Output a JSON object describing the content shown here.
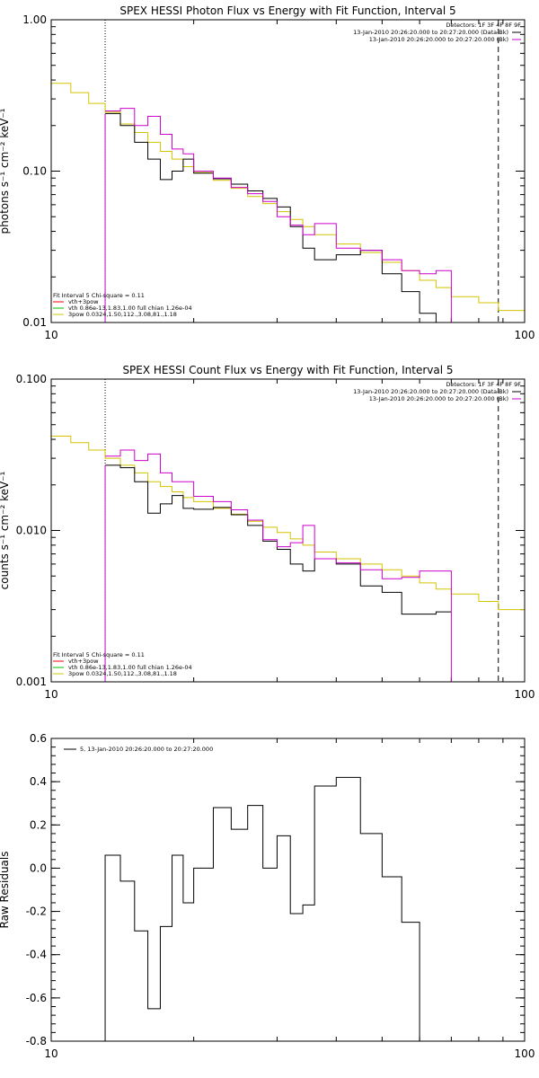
{
  "colors": {
    "black": "#000000",
    "magenta": "#cc00cc",
    "yellow": "#d4c400",
    "red": "#ff0000",
    "green": "#00c000"
  },
  "chart_data": [
    {
      "type": "line",
      "title": "SPEX HESSI Photon Flux vs Energy with Fit Function, Interval 5",
      "xlabel": "",
      "ylabel": "photons s⁻¹ cm⁻² keV⁻¹",
      "xscale": "log",
      "yscale": "log",
      "xlim": [
        10,
        100
      ],
      "ylim": [
        0.01,
        1.0
      ],
      "x_ticks": [
        10,
        100
      ],
      "y_ticks": [
        0.01,
        0.1,
        1.0
      ],
      "x_tick_labels": [
        "10",
        "100"
      ],
      "y_tick_labels": [
        "0.01",
        "0.10",
        "1.00"
      ],
      "vlines": [
        {
          "x": 13,
          "style": "dotted"
        },
        {
          "x": 88,
          "style": "dashed"
        }
      ],
      "legend_top_right": {
        "header": "Detectors: 1F 3F 4F 8F 9F",
        "entries": [
          {
            "text": "13-Jan-2010 20:26:20.000 to 20:27:20.000 (Data-Bk)",
            "color": "#000000"
          },
          {
            "text": "13-Jan-2010 20:26:20.000 to 20:27:20.000 (Bk)",
            "color": "#cc00cc"
          }
        ]
      },
      "legend_bottom_left": {
        "header": "Fit Interval 5   Chi-square = 0.11",
        "entries": [
          {
            "text": "vth+3pow",
            "color": "#ff0000"
          },
          {
            "text": "vth 0.86e-13,1.83,1.00  full chian 1.26e-04",
            "color": "#00c000"
          },
          {
            "text": "3pow 0.0324,1.50,112.,3.08,81.,1.18",
            "color": "#d4c400"
          }
        ]
      },
      "bin_edges": [
        10,
        11,
        12,
        13,
        14,
        15,
        16,
        17,
        18,
        19,
        20,
        22,
        24,
        26,
        28,
        30,
        32,
        34,
        36,
        40,
        45,
        50,
        55,
        60,
        65,
        70,
        80,
        88,
        100
      ],
      "series": [
        {
          "color": "#d4c400",
          "values": [
            0.38,
            0.33,
            0.28,
            0.245,
            0.205,
            0.18,
            0.155,
            0.135,
            0.12,
            0.107,
            0.098,
            0.087,
            0.077,
            0.068,
            0.061,
            0.054,
            0.048,
            0.043,
            0.038,
            0.033,
            0.029,
            0.025,
            0.022,
            0.019,
            0.017,
            0.0148,
            0.0135,
            0.012
          ]
        },
        {
          "color": "#000000",
          "values": [
            null,
            null,
            null,
            0.24,
            0.2,
            0.155,
            0.12,
            0.088,
            0.1,
            0.12,
            0.097,
            0.089,
            0.082,
            0.074,
            0.066,
            0.058,
            0.043,
            0.031,
            0.026,
            0.028,
            0.03,
            0.021,
            0.016,
            0.0115,
            0.0095,
            null,
            null,
            null
          ]
        },
        {
          "color": "#cc00cc",
          "values": [
            null,
            null,
            null,
            0.25,
            0.26,
            0.2,
            0.23,
            0.175,
            0.14,
            0.13,
            0.1,
            0.09,
            0.078,
            0.071,
            0.063,
            0.05,
            0.044,
            0.038,
            0.045,
            0.031,
            0.03,
            0.026,
            0.022,
            0.021,
            0.022,
            null,
            null,
            null
          ]
        }
      ]
    },
    {
      "type": "line",
      "title": "SPEX HESSI Count Flux vs Energy with Fit Function, Interval 5",
      "xlabel": "",
      "ylabel": "counts s⁻¹ cm⁻² keV⁻¹",
      "xscale": "log",
      "yscale": "log",
      "xlim": [
        10,
        100
      ],
      "ylim": [
        0.001,
        0.1
      ],
      "x_ticks": [
        10,
        100
      ],
      "y_ticks": [
        0.001,
        0.01,
        0.1
      ],
      "x_tick_labels": [
        "10",
        "100"
      ],
      "y_tick_labels": [
        "0.001",
        "0.010",
        "0.100"
      ],
      "vlines": [
        {
          "x": 13,
          "style": "dotted"
        },
        {
          "x": 88,
          "style": "dashed"
        }
      ],
      "legend_top_right": {
        "header": "Detectors: 1F 3F 4F 8F 9F",
        "entries": [
          {
            "text": "13-Jan-2010 20:26:20.000 to 20:27:20.000 (Data-Bk)",
            "color": "#000000"
          },
          {
            "text": "13-Jan-2010 20:26:20.000 to 20:27:20.000 (Bk)",
            "color": "#cc00cc"
          }
        ]
      },
      "legend_bottom_left": {
        "header": "Fit Interval 5   Chi-square = 0.11",
        "entries": [
          {
            "text": "vth+3pow",
            "color": "#ff0000"
          },
          {
            "text": "vth 0.86e-13,1.83,1.00  full chian 1.26e-04",
            "color": "#00c000"
          },
          {
            "text": "3pow 0.0324,1.50,112.,3.08,81.,1.18",
            "color": "#d4c400"
          }
        ]
      },
      "bin_edges": [
        10,
        11,
        12,
        13,
        14,
        15,
        16,
        17,
        18,
        19,
        20,
        22,
        24,
        26,
        28,
        30,
        32,
        34,
        36,
        40,
        45,
        50,
        55,
        60,
        65,
        70,
        80,
        88,
        100
      ],
      "series": [
        {
          "color": "#d4c400",
          "values": [
            0.042,
            0.038,
            0.034,
            0.03,
            0.027,
            0.024,
            0.021,
            0.0195,
            0.018,
            0.0165,
            0.0155,
            0.014,
            0.0128,
            0.0115,
            0.0105,
            0.0097,
            0.0088,
            0.008,
            0.0072,
            0.0065,
            0.006,
            0.0055,
            0.005,
            0.0045,
            0.0041,
            0.0038,
            0.0034,
            0.003
          ]
        },
        {
          "color": "#000000",
          "values": [
            null,
            null,
            null,
            0.027,
            0.026,
            0.021,
            0.013,
            0.015,
            0.017,
            0.014,
            0.0138,
            0.0142,
            0.0127,
            0.0108,
            0.0085,
            0.0075,
            0.006,
            0.0054,
            0.0065,
            0.006,
            0.0043,
            0.0039,
            0.0028,
            0.0028,
            0.0029,
            null,
            null,
            null
          ]
        },
        {
          "color": "#cc00cc",
          "values": [
            null,
            null,
            null,
            0.031,
            0.034,
            0.029,
            0.032,
            0.024,
            0.021,
            0.021,
            0.0168,
            0.0155,
            0.0137,
            0.0117,
            0.0087,
            0.0078,
            0.0083,
            0.0108,
            0.0065,
            0.0061,
            0.0055,
            0.0048,
            0.0049,
            0.0054,
            0.0054,
            null,
            null,
            null
          ]
        }
      ]
    },
    {
      "type": "line",
      "title": "",
      "xlabel": "",
      "ylabel": "Raw Residuals",
      "xscale": "log",
      "yscale": "linear",
      "xlim": [
        10,
        100
      ],
      "ylim": [
        -0.8,
        0.6
      ],
      "x_ticks": [
        10,
        100
      ],
      "y_ticks": [
        -0.8,
        -0.6,
        -0.4,
        -0.2,
        0.0,
        0.2,
        0.4,
        0.6
      ],
      "x_tick_labels": [
        "10",
        "100"
      ],
      "y_tick_labels": [
        "-0.8",
        "-0.6",
        "-0.4",
        "-0.2",
        "0.0",
        "0.2",
        "0.4",
        "0.6"
      ],
      "legend_top_left": {
        "entries": [
          {
            "text": "5, 13-Jan-2010 20:26:20.000 to 20:27:20.000",
            "color": "#000000"
          }
        ]
      },
      "bin_edges": [
        13,
        14,
        15,
        16,
        17,
        18,
        19,
        20,
        22,
        24,
        26,
        28,
        30,
        32,
        34,
        36,
        40,
        45,
        50,
        55,
        60,
        65,
        70,
        80,
        88
      ],
      "series": [
        {
          "color": "#000000",
          "values": [
            0.06,
            -0.06,
            -0.29,
            -0.65,
            -0.27,
            0.06,
            -0.16,
            0.0,
            0.28,
            0.18,
            0.29,
            0.0,
            0.15,
            -0.21,
            -0.17,
            0.38,
            0.42,
            0.16,
            -0.04,
            -0.25,
            null,
            null,
            null,
            null
          ]
        }
      ]
    }
  ]
}
